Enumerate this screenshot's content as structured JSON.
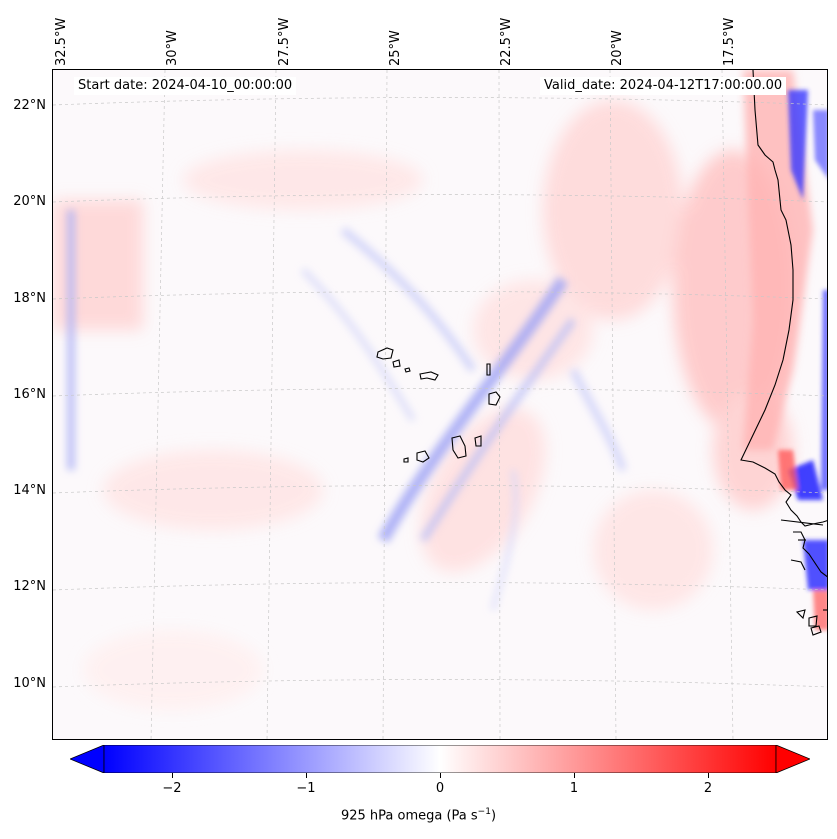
{
  "map": {
    "start_date": "Start date: 2024-04-10_00:00:00",
    "valid_date": "Valid_date: 2024-04-12T17:00:00.00",
    "longitude_labels": [
      "32.5°W",
      "30°W",
      "27.5°W",
      "25°W",
      "22.5°W",
      "20°W",
      "17.5°W"
    ],
    "latitude_labels": [
      "22°N",
      "20°N",
      "18°N",
      "16°N",
      "14°N",
      "12°N",
      "10°N"
    ],
    "field": "omega",
    "level": "925 hPa"
  },
  "colorbar": {
    "ticks": [
      "−2",
      "−1",
      "0",
      "1",
      "2"
    ],
    "label": "925 hPa omega (Pa s",
    "label_exponent": "−1",
    "label_close": ")",
    "min": -2.5,
    "max": 2.5,
    "cmap": "bwr",
    "low_color": "#0000ff",
    "mid_color": "#ffffff",
    "high_color": "#ff0000"
  }
}
